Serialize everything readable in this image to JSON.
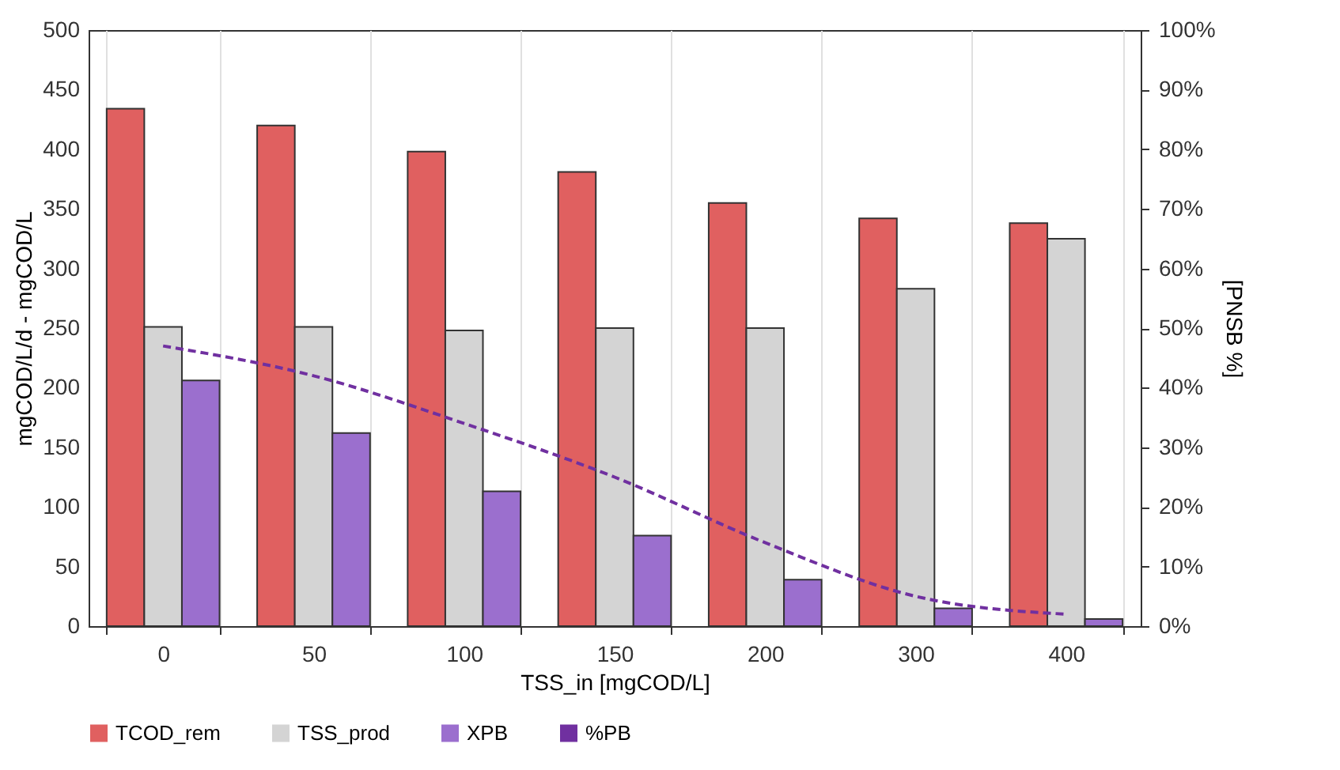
{
  "chart_data": {
    "type": "bar",
    "xlabel": "TSS_in [mgCOD/L]",
    "ylabel": "mgCOD/L/d - mgCOD/L",
    "y2label": "[PNSB %]",
    "categories": [
      "0",
      "50",
      "100",
      "150",
      "200",
      "300",
      "400"
    ],
    "series": [
      {
        "name": "TCOD_rem",
        "color": "#e06060",
        "values": [
          434,
          420,
          398,
          381,
          355,
          342,
          338
        ]
      },
      {
        "name": "TSS_prod",
        "color": "#d4d4d4",
        "values": [
          251,
          251,
          248,
          250,
          250,
          283,
          325
        ]
      },
      {
        "name": "XPB",
        "color": "#9b6fce",
        "values": [
          206,
          162,
          113,
          76,
          39,
          15,
          6
        ]
      },
      {
        "name": "%PB",
        "type": "line",
        "axis": "y2",
        "line_style": "dashed",
        "color": "#7030a0",
        "values": [
          47,
          42,
          34,
          25,
          14,
          5,
          2
        ]
      }
    ],
    "ylim": [
      0,
      500
    ],
    "yticks": [
      0,
      50,
      100,
      150,
      200,
      250,
      300,
      350,
      400,
      450,
      500
    ],
    "y2lim": [
      0,
      100
    ],
    "y2ticks": [
      {
        "value": 0,
        "label": "0%"
      },
      {
        "value": 10,
        "label": "10%"
      },
      {
        "value": 20,
        "label": "20%"
      },
      {
        "value": 30,
        "label": "30%"
      },
      {
        "value": 40,
        "label": "40%"
      },
      {
        "value": 50,
        "label": "50%"
      },
      {
        "value": 60,
        "label": "60%"
      },
      {
        "value": 70,
        "label": "70%"
      },
      {
        "value": 80,
        "label": "80%"
      },
      {
        "value": 90,
        "label": "90%"
      },
      {
        "value": 100,
        "label": "100%"
      }
    ],
    "grid": "x",
    "legend": "bottom"
  }
}
